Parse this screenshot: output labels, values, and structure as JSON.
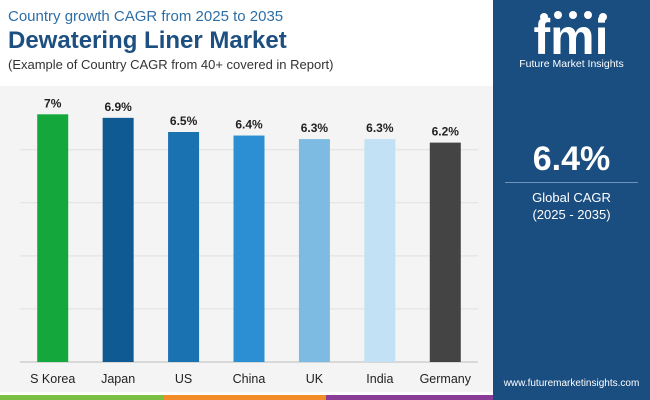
{
  "header": {
    "subtitle": "Country growth CAGR from 2025 to 2035",
    "title": "Dewatering Liner Market",
    "note": "(Example of Country CAGR from 40+ covered in Report)"
  },
  "brand": {
    "logo_text": "fmi",
    "name": "Future Market Insights",
    "website": "www.futuremarketinsights.com",
    "side_color": "#1a4d80"
  },
  "kpi": {
    "value": "6.4%",
    "label": "Global CAGR",
    "period": "(2025 - 2035)"
  },
  "chart_data": {
    "type": "bar",
    "categories": [
      "S Korea",
      "Japan",
      "US",
      "China",
      "UK",
      "India",
      "Germany"
    ],
    "values": [
      7.0,
      6.9,
      6.5,
      6.4,
      6.3,
      6.3,
      6.2
    ],
    "value_labels": [
      "7%",
      "6.9%",
      "6.5%",
      "6.4%",
      "6.3%",
      "6.3%",
      "6.2%"
    ],
    "colors": [
      "#14a83c",
      "#0f5a92",
      "#1b72b0",
      "#2d8fd3",
      "#7ebbe3",
      "#c3e1f4",
      "#444444"
    ],
    "ylim": [
      0,
      7.8
    ],
    "grid": true,
    "legend": "none"
  },
  "bottom_colors": [
    "#7ac143",
    "#f28c28",
    "#8a3d96"
  ]
}
